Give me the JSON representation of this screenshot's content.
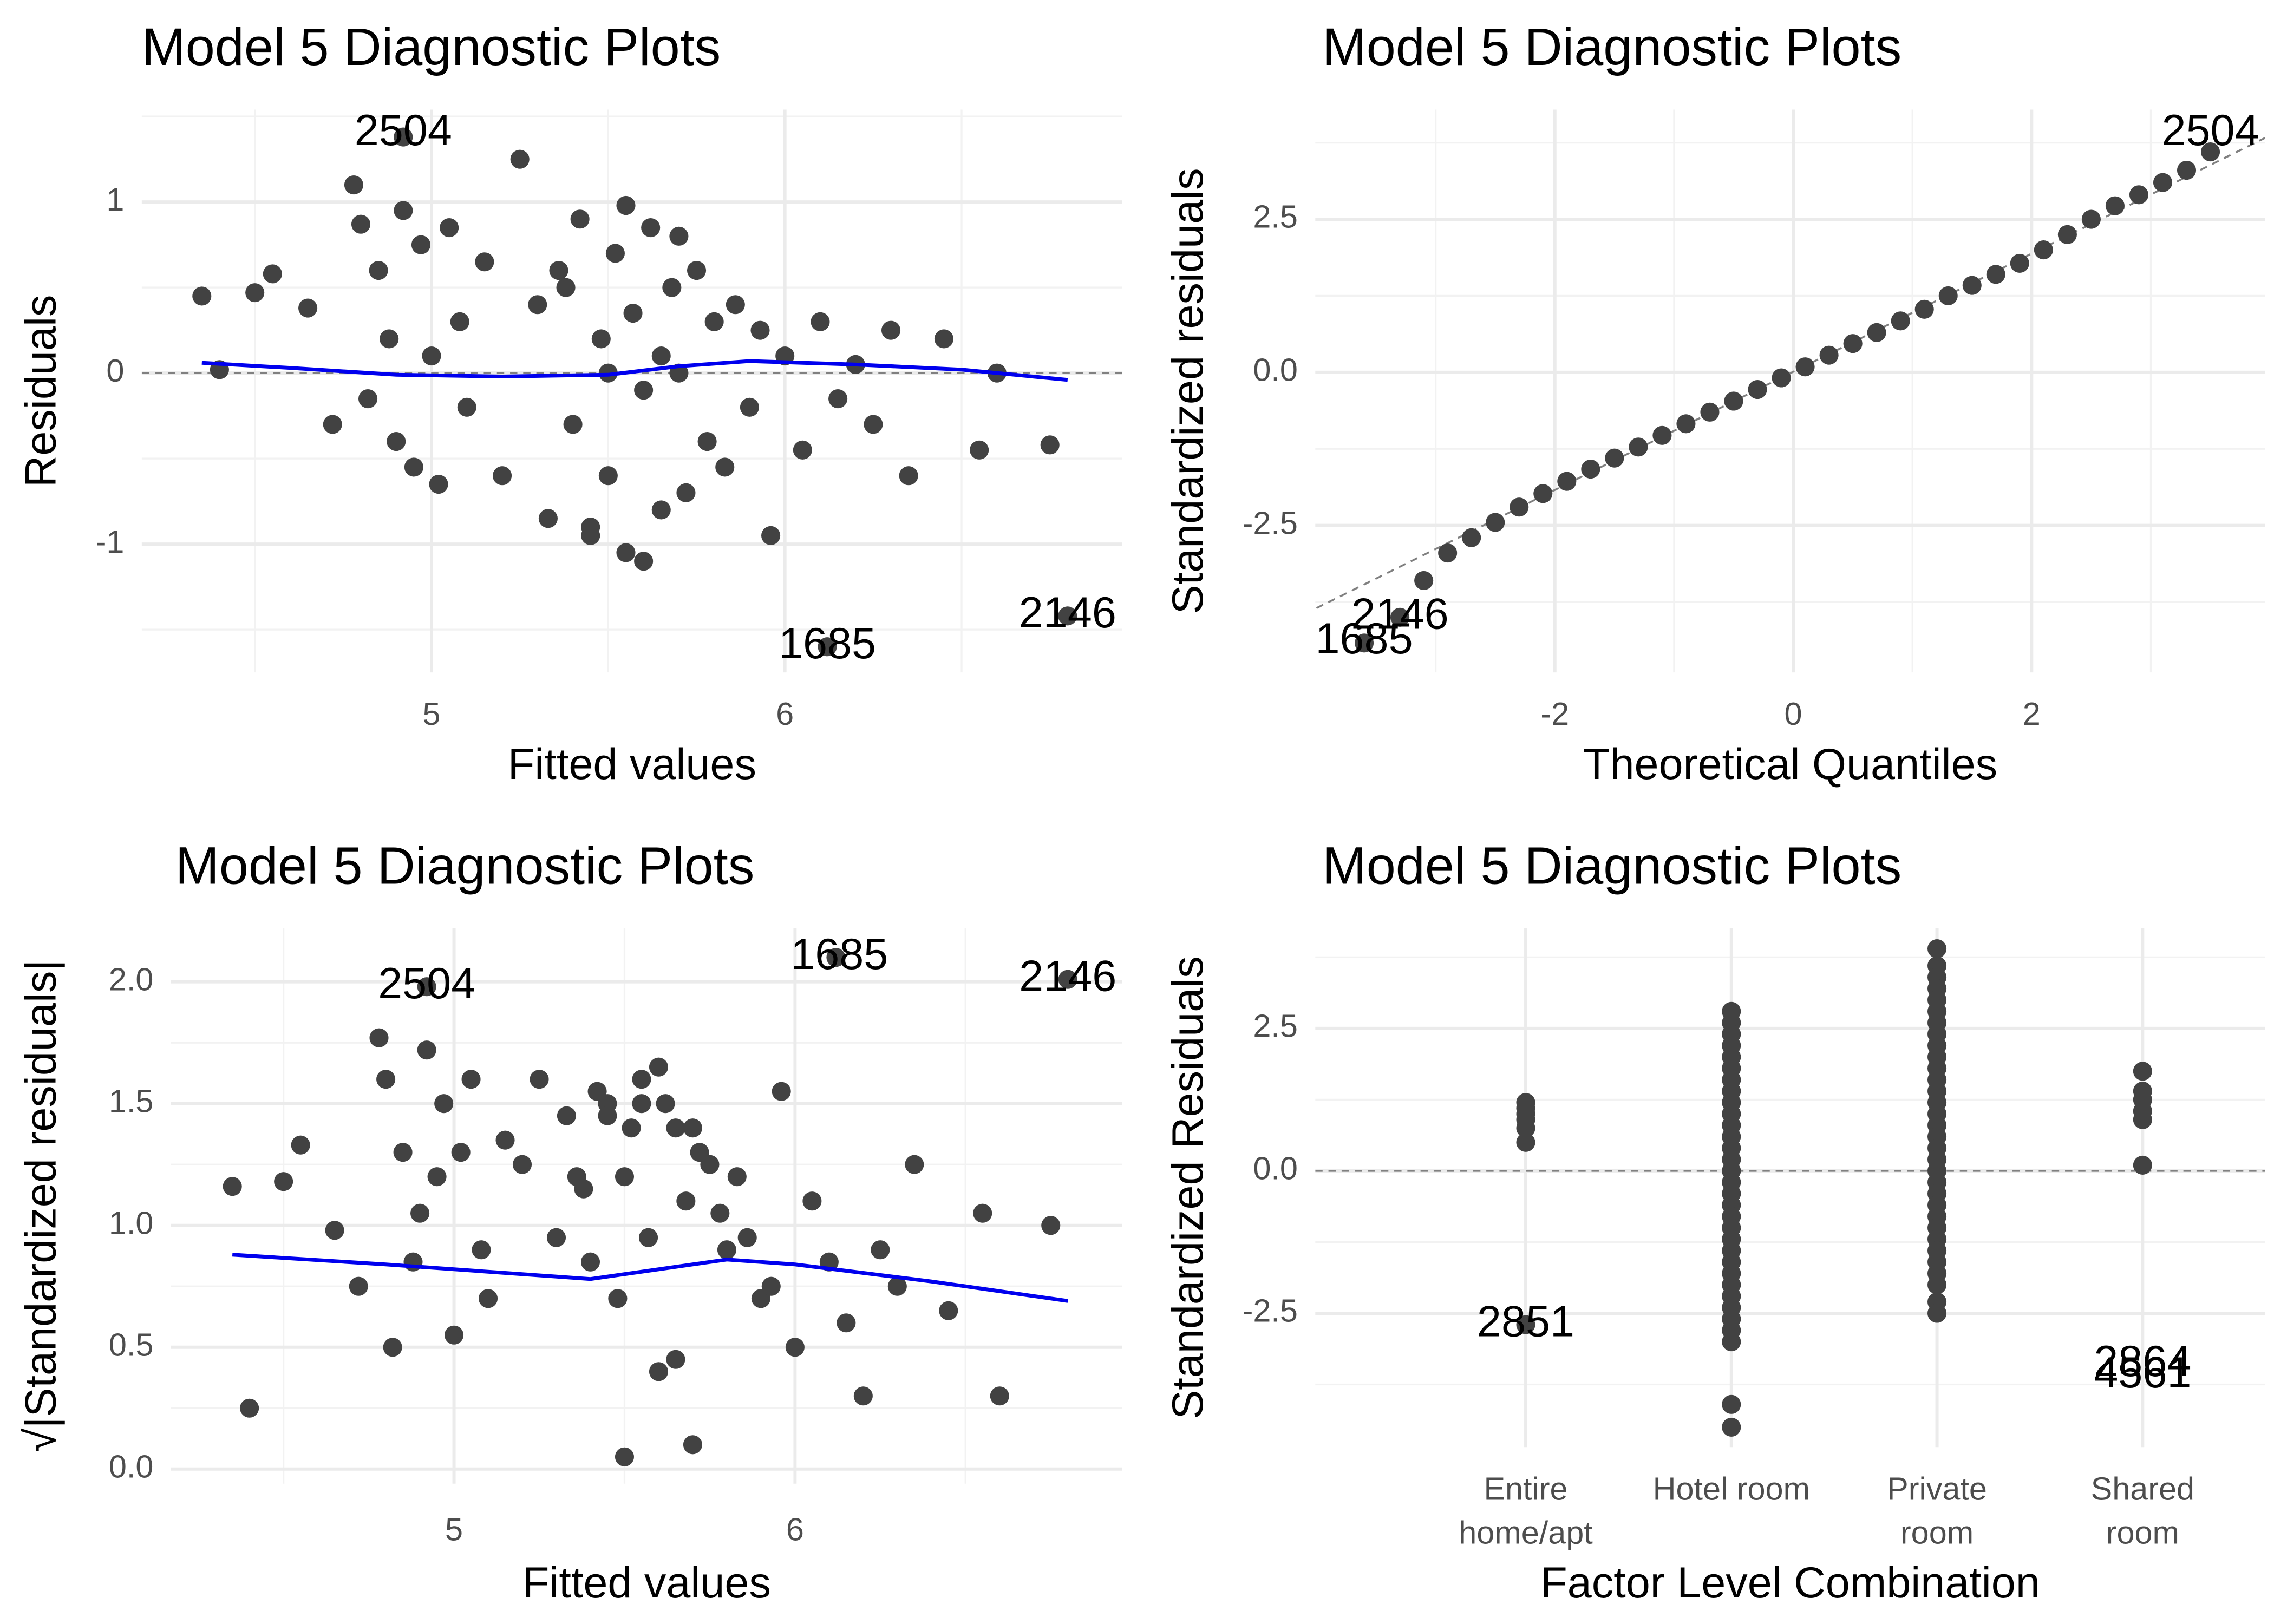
{
  "chart_data": [
    {
      "type": "scatter",
      "title": "Model 5 Diagnostic Plots",
      "x_label": "Fitted values",
      "y_label": "Residuals",
      "xlim": [
        4.18,
        6.955
      ],
      "ylim": [
        -1.75,
        1.54
      ],
      "xticks": [
        5,
        6
      ],
      "yticks": [
        -1,
        0,
        1
      ],
      "grid": true,
      "hline": 0,
      "color": "#424242",
      "x": [
        4.35,
        4.4,
        4.5,
        4.55,
        4.65,
        4.72,
        4.78,
        4.8,
        4.82,
        4.85,
        4.88,
        4.9,
        4.92,
        4.95,
        4.97,
        5.0,
        5.02,
        5.05,
        5.08,
        5.1,
        5.15,
        5.2,
        5.25,
        5.3,
        5.33,
        5.36,
        5.4,
        5.42,
        5.45,
        5.48,
        5.5,
        5.52,
        5.55,
        5.57,
        5.6,
        5.62,
        5.65,
        5.68,
        5.7,
        5.72,
        5.75,
        5.78,
        5.8,
        5.83,
        5.86,
        5.9,
        5.93,
        5.96,
        6.0,
        6.05,
        6.1,
        6.15,
        6.2,
        6.25,
        6.3,
        6.35,
        6.45,
        6.55,
        6.6,
        6.75,
        4.92,
        5.55,
        5.6,
        5.45,
        5.7,
        5.5,
        5.38,
        5.65,
        6.12,
        6.8
      ],
      "values": [
        0.45,
        0.02,
        0.47,
        0.58,
        0.38,
        -0.3,
        1.1,
        0.87,
        -0.15,
        0.6,
        0.2,
        -0.4,
        0.95,
        -0.55,
        0.75,
        0.1,
        -0.65,
        0.85,
        0.3,
        -0.2,
        0.65,
        -0.6,
        1.25,
        0.4,
        -0.85,
        0.6,
        -0.3,
        0.9,
        -0.95,
        0.2,
        -0.6,
        0.7,
        -1.05,
        0.35,
        -0.1,
        0.85,
        -0.8,
        0.5,
        0.0,
        -0.7,
        0.6,
        -0.4,
        0.3,
        -0.55,
        0.4,
        -0.2,
        0.25,
        -0.95,
        0.1,
        -0.45,
        0.3,
        -0.15,
        0.05,
        -0.3,
        0.25,
        -0.6,
        0.2,
        -0.45,
        0.0,
        -0.42,
        1.38,
        0.98,
        -1.1,
        -0.9,
        0.8,
        0.0,
        0.5,
        0.1,
        -1.6,
        -1.42
      ],
      "smooth": {
        "color": "#0000ee",
        "x": [
          4.35,
          4.6,
          4.9,
          5.2,
          5.5,
          5.7,
          5.9,
          6.2,
          6.5,
          6.8
        ],
        "values": [
          0.06,
          0.03,
          -0.01,
          -0.02,
          -0.01,
          0.04,
          0.07,
          0.05,
          0.02,
          -0.04
        ]
      },
      "annotations": [
        {
          "text": "2504",
          "x": 4.92,
          "y": 1.4
        },
        {
          "text": "1685",
          "x": 6.12,
          "y": -1.6
        },
        {
          "text": "2146",
          "x": 6.8,
          "y": -1.42
        }
      ]
    },
    {
      "type": "qq",
      "title": "Model 5 Diagnostic Plots",
      "x_label": "Theoretical Quantiles",
      "y_label": "Standardized residuals",
      "xlim": [
        -4.01,
        3.96
      ],
      "ylim": [
        -4.9,
        4.29
      ],
      "xticks": [
        -2,
        0,
        2
      ],
      "yticks": [
        -2.5,
        {
          "value": 0,
          "label": "0.0"
        },
        2.5
      ],
      "grid": true,
      "color": "#424242",
      "x": [
        -3.6,
        -3.3,
        -3.1,
        -2.9,
        -2.7,
        -2.5,
        -2.3,
        -2.1,
        -1.9,
        -1.7,
        -1.5,
        -1.3,
        -1.1,
        -0.9,
        -0.7,
        -0.5,
        -0.3,
        -0.1,
        0.1,
        0.3,
        0.5,
        0.7,
        0.9,
        1.1,
        1.3,
        1.5,
        1.7,
        1.9,
        2.1,
        2.3,
        2.5,
        2.7,
        2.9,
        3.1,
        3.3,
        3.5
      ],
      "values": [
        -4.42,
        -4.0,
        -3.4,
        -2.95,
        -2.7,
        -2.45,
        -2.2,
        -1.98,
        -1.78,
        -1.58,
        -1.4,
        -1.22,
        -1.03,
        -0.84,
        -0.65,
        -0.47,
        -0.28,
        -0.09,
        0.09,
        0.28,
        0.47,
        0.65,
        0.84,
        1.03,
        1.25,
        1.42,
        1.6,
        1.78,
        2.0,
        2.25,
        2.5,
        2.72,
        2.9,
        3.1,
        3.3,
        3.6
      ],
      "reference_line": {
        "x": [
          -4.0,
          3.96
        ],
        "values": [
          -3.85,
          3.83
        ]
      },
      "annotations": [
        {
          "text": "2504",
          "x": 3.5,
          "y": 3.9
        },
        {
          "text": "2146",
          "x": -3.3,
          "y": -4.0
        },
        {
          "text": "1685",
          "x": -3.6,
          "y": -4.4
        }
      ]
    },
    {
      "type": "scatter",
      "title": "Model 5 Diagnostic Plots",
      "x_label": "Fitted values",
      "y_label": "√|Standardized residuals|",
      "xlim": [
        4.17,
        6.96
      ],
      "ylim": [
        -0.06,
        2.22
      ],
      "xticks": [
        5,
        6
      ],
      "yticks": [
        {
          "value": 0,
          "label": "0.0"
        },
        0.5,
        {
          "value": 1,
          "label": "1.0"
        },
        1.5,
        {
          "value": 2,
          "label": "2.0"
        }
      ],
      "grid": true,
      "color": "#424242",
      "x": [
        4.35,
        4.4,
        4.5,
        4.55,
        4.65,
        4.72,
        4.78,
        4.8,
        4.82,
        4.85,
        4.88,
        4.9,
        4.92,
        4.95,
        4.97,
        5.0,
        5.02,
        5.05,
        5.08,
        5.1,
        5.15,
        5.2,
        5.25,
        5.3,
        5.33,
        5.36,
        5.4,
        5.42,
        5.45,
        5.48,
        5.5,
        5.52,
        5.55,
        5.57,
        5.6,
        5.62,
        5.65,
        5.68,
        5.7,
        5.72,
        5.75,
        5.78,
        5.8,
        5.83,
        5.86,
        5.9,
        5.93,
        5.96,
        6.0,
        6.05,
        6.1,
        6.15,
        6.2,
        6.25,
        6.3,
        6.35,
        6.45,
        6.55,
        6.6,
        6.75,
        4.92,
        5.55,
        5.6,
        5.45,
        5.7,
        5.5,
        5.38,
        5.65,
        6.12,
        6.8
      ],
      "values": [
        1.16,
        0.25,
        1.18,
        1.33,
        0.98,
        0.75,
        1.77,
        1.6,
        0.5,
        1.3,
        0.85,
        1.05,
        1.72,
        1.2,
        1.5,
        0.55,
        1.3,
        1.6,
        0.9,
        0.7,
        1.35,
        1.25,
        1.6,
        0.95,
        1.45,
        1.2,
        0.85,
        1.55,
        1.5,
        0.7,
        1.2,
        1.4,
        1.6,
        0.95,
        0.4,
        1.5,
        1.4,
        1.1,
        0.1,
        1.3,
        1.25,
        1.05,
        0.9,
        1.2,
        0.95,
        0.7,
        0.75,
        1.55,
        0.5,
        1.1,
        0.85,
        0.6,
        0.3,
        0.9,
        0.75,
        1.25,
        0.65,
        1.05,
        0.3,
        1.0,
        1.98,
        1.5,
        1.65,
        1.45,
        1.4,
        0.05,
        1.15,
        0.45,
        2.1,
        2.01
      ],
      "smooth": {
        "color": "#0000ee",
        "x": [
          4.35,
          4.8,
          5.2,
          5.4,
          5.6,
          5.8,
          6.0,
          6.4,
          6.8
        ],
        "values": [
          0.88,
          0.84,
          0.8,
          0.78,
          0.82,
          0.86,
          0.84,
          0.77,
          0.69
        ]
      },
      "annotations": [
        {
          "text": "2504",
          "x": 4.92,
          "y": 1.98
        },
        {
          "text": "1685",
          "x": 6.13,
          "y": 2.1
        },
        {
          "text": "2146",
          "x": 6.8,
          "y": 2.01
        }
      ]
    },
    {
      "type": "strip",
      "title": "Model 5 Diagnostic Plots",
      "x_label": "Factor Level Combination",
      "y_label": "Standardized Residuals",
      "categories": [
        "Entire\nhome/apt",
        "Hotel room",
        "Private\nroom",
        "Shared\nroom"
      ],
      "ylim": [
        -4.85,
        4.26
      ],
      "yticks": [
        -2.5,
        {
          "value": 0,
          "label": "0.0"
        },
        2.5
      ],
      "grid": true,
      "hline": 0,
      "color": "#424242",
      "values": [
        [
          1.2,
          1.1,
          1.0,
          0.9,
          0.75,
          0.5,
          -2.7
        ],
        [
          2.8,
          2.6,
          2.4,
          2.2,
          2.0,
          1.8,
          1.6,
          1.4,
          1.2,
          1.0,
          0.8,
          0.6,
          0.4,
          0.2,
          0.0,
          -0.2,
          -0.4,
          -0.6,
          -0.8,
          -1.0,
          -1.2,
          -1.4,
          -1.6,
          -1.8,
          -2.0,
          -2.2,
          -2.4,
          -2.6,
          -2.8,
          -3.0,
          -4.1,
          -4.5
        ],
        [
          3.9,
          3.6,
          3.4,
          3.2,
          3.0,
          2.8,
          2.6,
          2.4,
          2.2,
          2.0,
          1.8,
          1.6,
          1.4,
          1.2,
          1.0,
          0.8,
          0.6,
          0.4,
          0.2,
          0.0,
          -0.2,
          -0.4,
          -0.6,
          -0.8,
          -1.0,
          -1.2,
          -1.4,
          -1.6,
          -1.8,
          -2.0,
          -2.3,
          -2.5
        ],
        [
          1.75,
          1.4,
          1.25,
          1.05,
          0.9,
          0.1
        ]
      ],
      "annotations": [
        {
          "text": "2851",
          "category": "Entire\nhome/apt",
          "y": -2.7
        },
        {
          "text": "2864",
          "category": "Shared\nroom",
          "y": -3.4
        },
        {
          "text": "4561",
          "category": "Shared\nroom",
          "y": -3.6
        }
      ]
    }
  ]
}
